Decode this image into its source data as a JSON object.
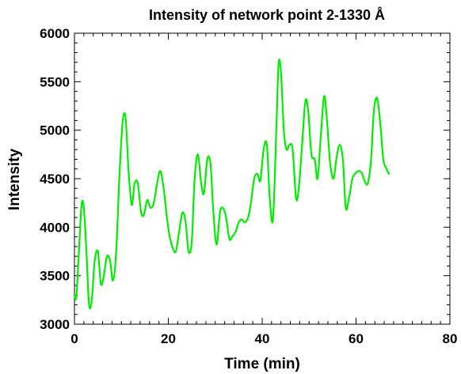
{
  "chart_data": {
    "type": "line",
    "title": "Intensity of network point 2-1330 Å",
    "xlabel": "Time (min)",
    "ylabel": "Intensity",
    "xlim": [
      0,
      80
    ],
    "ylim": [
      3000,
      6000
    ],
    "xticks": [
      0,
      20,
      40,
      60,
      80
    ],
    "yticks": [
      3000,
      3500,
      4000,
      4500,
      5000,
      5500,
      6000
    ],
    "grid": false,
    "series": [
      {
        "color": "#00ee00",
        "x": [
          0,
          0.4,
          0.9,
          1.5,
          2.0,
          2.6,
          3.1,
          3.7,
          4.3,
          5.0,
          5.6,
          6.2,
          6.9,
          7.6,
          8.2,
          8.9,
          9.6,
          10.3,
          10.9,
          11.5,
          12.2,
          12.8,
          13.5,
          14.2,
          14.8,
          15.5,
          16.2,
          16.9,
          17.6,
          18.3,
          19.0,
          19.7,
          20.3,
          21.0,
          21.6,
          22.3,
          23.0,
          23.7,
          24.3,
          25.0,
          25.6,
          26.3,
          27.0,
          27.6,
          28.3,
          29.0,
          29.6,
          30.3,
          31.0,
          31.6,
          32.3,
          33.0,
          33.6,
          34.3,
          35.0,
          35.6,
          36.3,
          37.0,
          37.6,
          38.3,
          39.0,
          39.6,
          40.3,
          41.0,
          41.6,
          42.3,
          43.0,
          43.5,
          44.0,
          44.6,
          45.2,
          45.8,
          46.5,
          47.2,
          47.8,
          48.5,
          49.2,
          49.8,
          50.5,
          51.2,
          51.8,
          52.5,
          53.2,
          53.8,
          54.5,
          55.2,
          55.8,
          56.5,
          57.2,
          57.8,
          58.5,
          59.2,
          59.8,
          60.5,
          61.2,
          61.8,
          62.5,
          63.2,
          63.8,
          64.5,
          65.2,
          65.8,
          66.5,
          67.0
        ],
        "y": [
          3300,
          3280,
          3700,
          4220,
          4200,
          3700,
          3200,
          3250,
          3650,
          3750,
          3420,
          3480,
          3700,
          3650,
          3450,
          3750,
          4550,
          5100,
          5120,
          4600,
          4230,
          4450,
          4450,
          4150,
          4130,
          4280,
          4200,
          4250,
          4450,
          4580,
          4400,
          4100,
          3900,
          3780,
          3750,
          3950,
          4150,
          4050,
          3750,
          3850,
          4500,
          4750,
          4450,
          4350,
          4700,
          4650,
          4150,
          3820,
          4150,
          4200,
          4100,
          3880,
          3900,
          3950,
          4050,
          4080,
          4050,
          4100,
          4250,
          4500,
          4550,
          4480,
          4800,
          4850,
          4300,
          4080,
          5000,
          5680,
          5600,
          5000,
          4800,
          4850,
          4800,
          4300,
          4400,
          4850,
          5300,
          5200,
          4750,
          4700,
          4500,
          4950,
          5350,
          5100,
          4650,
          4500,
          4700,
          4850,
          4700,
          4200,
          4300,
          4500,
          4550,
          4580,
          4560,
          4480,
          4450,
          4700,
          5200,
          5330,
          5050,
          4700,
          4600,
          4550
        ]
      }
    ]
  }
}
